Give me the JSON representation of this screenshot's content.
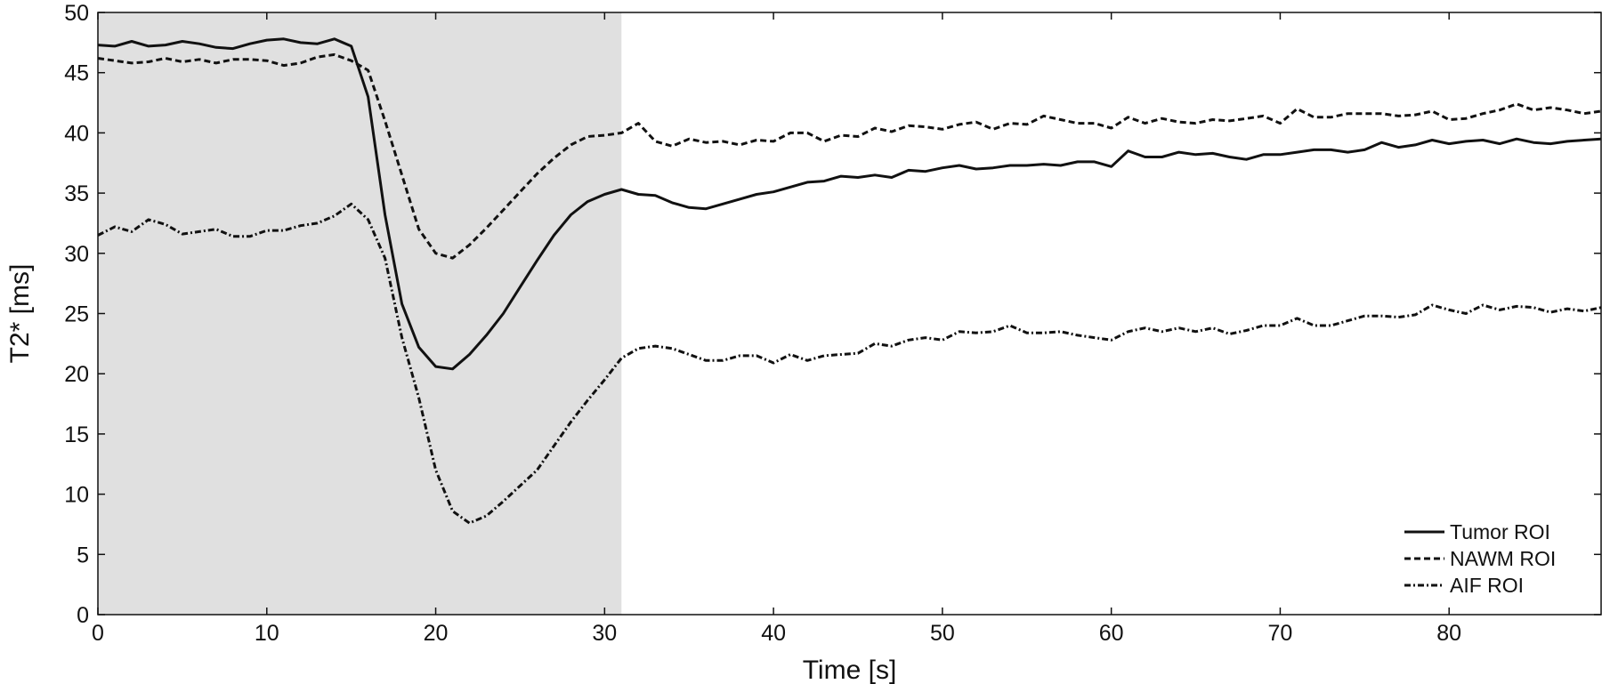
{
  "chart_data": {
    "type": "line",
    "title": "",
    "xlabel": "Time [s]",
    "ylabel": "T2* [ms]",
    "xlim": [
      0,
      89
    ],
    "ylim": [
      0,
      50
    ],
    "xticks": [
      0,
      10,
      20,
      30,
      40,
      50,
      60,
      70,
      80
    ],
    "yticks": [
      0,
      5,
      10,
      15,
      20,
      25,
      30,
      35,
      40,
      45,
      50
    ],
    "grid": false,
    "legend_position": "bottom-right",
    "shaded_region": {
      "x_start": 0,
      "x_end": 31,
      "color": "#e0e0e0"
    },
    "x": [
      0,
      1,
      2,
      3,
      4,
      5,
      6,
      7,
      8,
      9,
      10,
      11,
      12,
      13,
      14,
      15,
      16,
      17,
      18,
      19,
      20,
      21,
      22,
      23,
      24,
      25,
      26,
      27,
      28,
      29,
      30,
      31,
      32,
      33,
      34,
      35,
      36,
      37,
      38,
      39,
      40,
      41,
      42,
      43,
      44,
      45,
      46,
      47,
      48,
      49,
      50,
      51,
      52,
      53,
      54,
      55,
      56,
      57,
      58,
      59,
      60,
      61,
      62,
      63,
      64,
      65,
      66,
      67,
      68,
      69,
      70,
      71,
      72,
      73,
      74,
      75,
      76,
      77,
      78,
      79,
      80,
      81,
      82,
      83,
      84,
      85,
      86,
      87,
      88,
      89
    ],
    "series": [
      {
        "name": "Tumor ROI",
        "style": "solid",
        "values": [
          47.3,
          47.2,
          47.6,
          47.2,
          47.3,
          47.6,
          47.4,
          47.1,
          47.0,
          47.4,
          47.7,
          47.8,
          47.5,
          47.4,
          47.8,
          47.2,
          43.0,
          33.2,
          25.8,
          22.2,
          20.6,
          20.4,
          21.6,
          23.2,
          25.0,
          27.2,
          29.4,
          31.5,
          33.2,
          34.3,
          34.9,
          35.3,
          34.9,
          34.8,
          34.2,
          33.8,
          33.7,
          34.1,
          34.5,
          34.9,
          35.1,
          35.5,
          35.9,
          36.0,
          36.4,
          36.3,
          36.5,
          36.3,
          36.9,
          36.8,
          37.1,
          37.3,
          37.0,
          37.1,
          37.3,
          37.3,
          37.4,
          37.3,
          37.6,
          37.6,
          37.2,
          38.5,
          38.0,
          38.0,
          38.4,
          38.2,
          38.3,
          38.0,
          37.8,
          38.2,
          38.2,
          38.4,
          38.6,
          38.6,
          38.4,
          38.6,
          39.2,
          38.8,
          39.0,
          39.4,
          39.1,
          39.3,
          39.4,
          39.1,
          39.5,
          39.2,
          39.1,
          39.3,
          39.4,
          39.5
        ]
      },
      {
        "name": "NAWM ROI",
        "style": "dashed",
        "values": [
          46.2,
          46.0,
          45.8,
          45.9,
          46.2,
          45.9,
          46.1,
          45.8,
          46.1,
          46.1,
          46.0,
          45.6,
          45.8,
          46.3,
          46.5,
          46.0,
          45.2,
          41.0,
          36.5,
          32.0,
          30.0,
          29.6,
          30.7,
          32.1,
          33.6,
          35.1,
          36.6,
          37.9,
          39.0,
          39.7,
          39.8,
          40.0,
          40.8,
          39.3,
          38.9,
          39.5,
          39.2,
          39.3,
          39.0,
          39.4,
          39.3,
          40.0,
          40.0,
          39.3,
          39.8,
          39.7,
          40.4,
          40.1,
          40.6,
          40.5,
          40.3,
          40.7,
          40.9,
          40.3,
          40.8,
          40.7,
          41.4,
          41.1,
          40.8,
          40.8,
          40.4,
          41.3,
          40.8,
          41.2,
          40.9,
          40.8,
          41.1,
          41.0,
          41.2,
          41.4,
          40.8,
          42.0,
          41.3,
          41.3,
          41.6,
          41.6,
          41.6,
          41.4,
          41.5,
          41.8,
          41.1,
          41.2,
          41.6,
          41.9,
          42.4,
          41.9,
          42.1,
          41.9,
          41.6,
          41.8
        ]
      },
      {
        "name": "AIF ROI",
        "style": "dash-dot",
        "values": [
          31.5,
          32.2,
          31.8,
          32.8,
          32.4,
          31.6,
          31.8,
          32.0,
          31.4,
          31.4,
          31.9,
          31.9,
          32.3,
          32.5,
          33.1,
          34.1,
          32.8,
          29.6,
          23.0,
          18.0,
          12.0,
          8.6,
          7.6,
          8.2,
          9.4,
          10.7,
          12.0,
          14.0,
          16.0,
          17.8,
          19.5,
          21.3,
          22.1,
          22.3,
          22.1,
          21.6,
          21.1,
          21.1,
          21.5,
          21.5,
          20.9,
          21.6,
          21.1,
          21.5,
          21.6,
          21.7,
          22.5,
          22.3,
          22.8,
          23.0,
          22.8,
          23.5,
          23.4,
          23.5,
          24.0,
          23.4,
          23.4,
          23.5,
          23.2,
          23.0,
          22.8,
          23.5,
          23.8,
          23.5,
          23.8,
          23.5,
          23.8,
          23.3,
          23.6,
          24.0,
          24.0,
          24.6,
          24.0,
          24.0,
          24.4,
          24.8,
          24.8,
          24.7,
          24.9,
          25.7,
          25.3,
          25.0,
          25.7,
          25.3,
          25.6,
          25.5,
          25.1,
          25.4,
          25.2,
          25.5
        ]
      }
    ]
  }
}
